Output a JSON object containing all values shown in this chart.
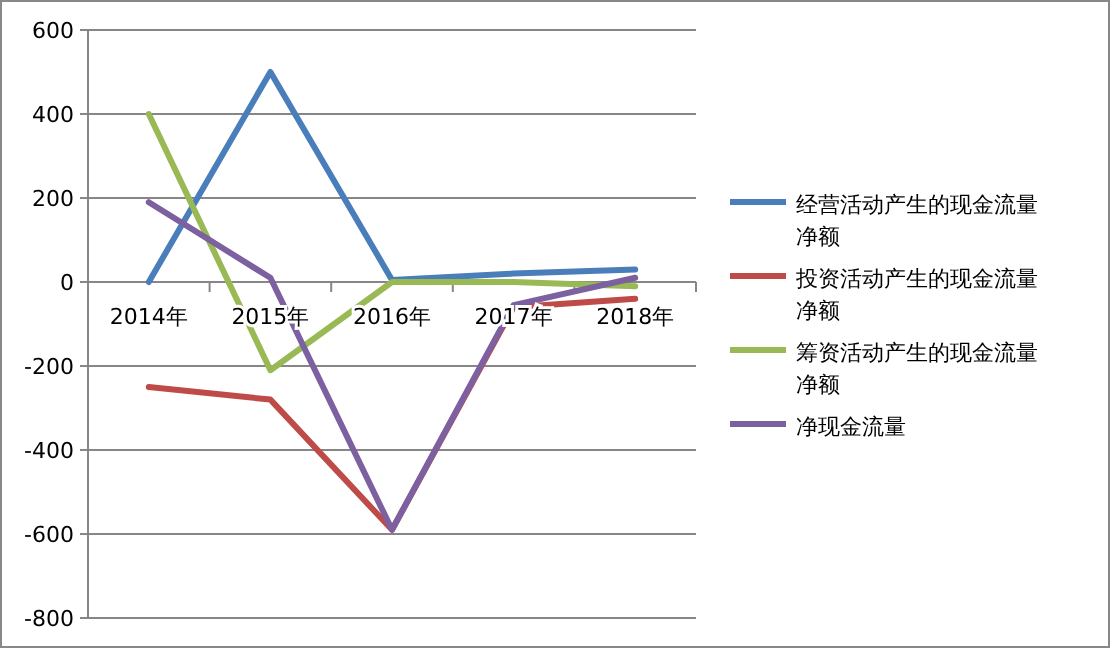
{
  "chart_data": {
    "type": "line",
    "categories": [
      "2014年",
      "2015年",
      "2016年",
      "2017年",
      "2018年"
    ],
    "series": [
      {
        "name": "经营活动产生的现金流量净额",
        "color": "#4a7ebb",
        "values": [
          0,
          500,
          5,
          20,
          30
        ]
      },
      {
        "name": "投资活动产生的现金流量净额",
        "color": "#be4b48",
        "values": [
          -250,
          -280,
          -590,
          -60,
          -40
        ]
      },
      {
        "name": "筹资活动产生的现金流量净额",
        "color": "#98b954",
        "values": [
          400,
          -210,
          0,
          0,
          -10
        ]
      },
      {
        "name": "净现金流量",
        "color": "#7d60a0",
        "values": [
          190,
          10,
          -590,
          -55,
          10
        ]
      }
    ],
    "ylim": [
      -800,
      600
    ],
    "yticks": [
      -800,
      -600,
      -400,
      -200,
      0,
      200,
      400,
      600
    ],
    "grid": "y",
    "legend": "right"
  }
}
